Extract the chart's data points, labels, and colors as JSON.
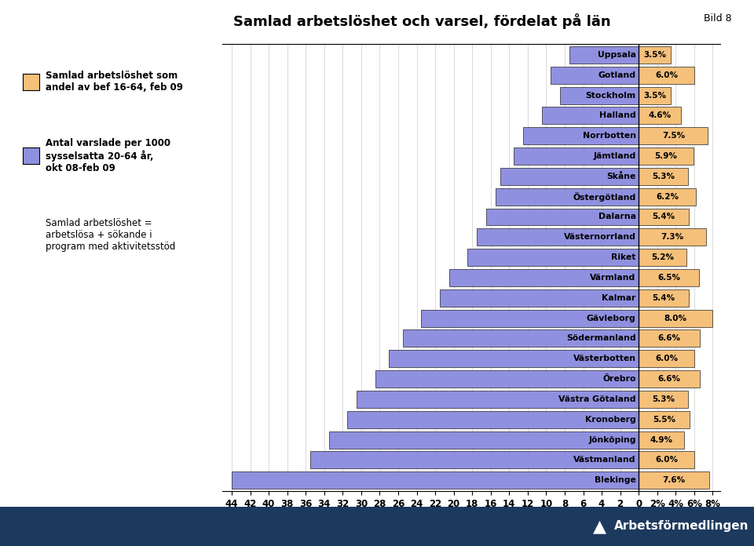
{
  "title": "Samlad arbetslöshet och varsel, fördelat på län",
  "bild": "Bild 8",
  "regions": [
    "Uppsala",
    "Gotland",
    "Stockholm",
    "Halland",
    "Norrbotten",
    "Jämtland",
    "Skåne",
    "Östergötland",
    "Dalarna",
    "Västernorrland",
    "Riket",
    "Värmland",
    "Kalmar",
    "Gävleborg",
    "Södermanland",
    "Västerbotten",
    "Örebro",
    "Västra Götaland",
    "Kronoberg",
    "Jönköping",
    "Västmanland",
    "Blekinge"
  ],
  "unemp_pct": [
    3.5,
    6.0,
    3.5,
    4.6,
    7.5,
    5.9,
    5.3,
    6.2,
    5.4,
    7.3,
    5.2,
    6.5,
    5.4,
    8.0,
    6.6,
    6.0,
    6.6,
    5.3,
    5.5,
    4.9,
    6.0,
    7.6
  ],
  "varslade": [
    7.5,
    9.5,
    8.5,
    10.5,
    12.5,
    13.5,
    15.0,
    15.5,
    16.5,
    17.5,
    18.5,
    20.5,
    21.5,
    23.5,
    25.5,
    27.0,
    28.5,
    30.5,
    31.5,
    33.5,
    35.5,
    44.0
  ],
  "bar_color_blue": "#9090e0",
  "bar_color_orange": "#f5c07a",
  "bar_edge_color": "#222222",
  "background_color": "#ffffff",
  "legend1_color": "#f5c07a",
  "legend2_color": "#9090e0",
  "legend1_text": "Samlad arbetslöshet som\nandel av bef 16-64, feb 09",
  "legend2_text": "Antal varslade per 1000\nsysselsatta 20-64 år,\nokt 08-feb 09",
  "note_text": "Samlad arbetslöshet =\narbetslösa + sökande i\nprogram med aktivitetsstöd",
  "footer_color": "#1c3a5e"
}
